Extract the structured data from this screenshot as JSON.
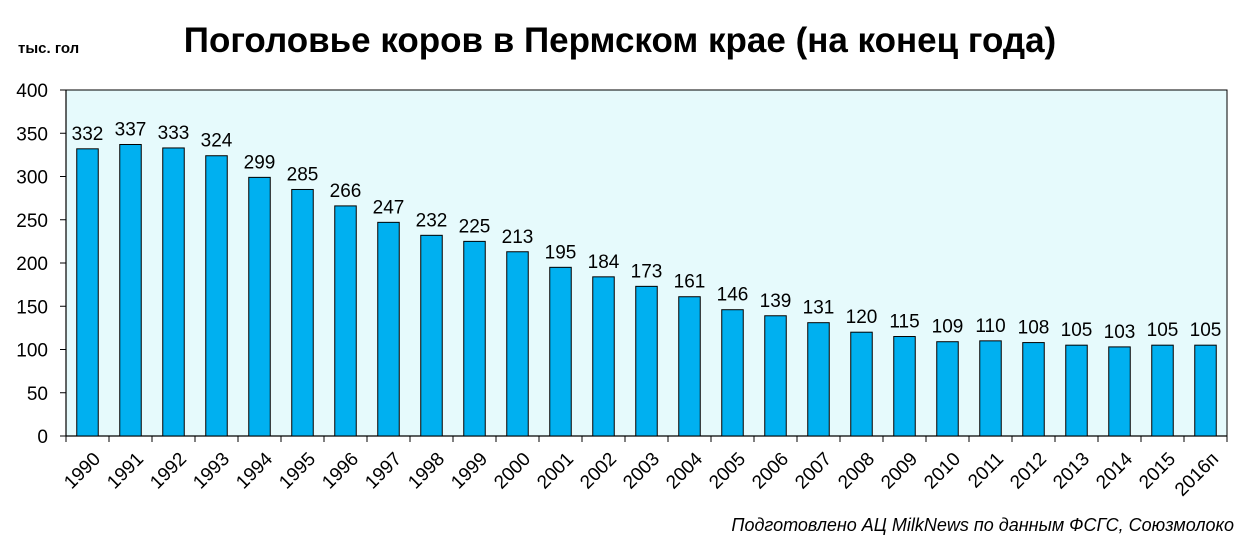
{
  "chart_data": {
    "type": "bar",
    "title": "Поголовье коров в Пермском крае (на конец года)",
    "ylabel": "тыс. гол",
    "xlabel": "",
    "ylim": [
      0,
      400
    ],
    "yticks": [
      0,
      50,
      100,
      150,
      200,
      250,
      300,
      350,
      400
    ],
    "grid": false,
    "categories": [
      "1990",
      "1991",
      "1992",
      "1993",
      "1994",
      "1995",
      "1996",
      "1997",
      "1998",
      "1999",
      "2000",
      "2001",
      "2002",
      "2003",
      "2004",
      "2005",
      "2006",
      "2007",
      "2008",
      "2009",
      "2010",
      "2011",
      "2012",
      "2013",
      "2014",
      "2015",
      "2016п"
    ],
    "values": [
      332,
      337,
      333,
      324,
      299,
      285,
      266,
      247,
      232,
      225,
      213,
      195,
      184,
      173,
      161,
      146,
      139,
      131,
      120,
      115,
      109,
      110,
      108,
      105,
      103,
      105,
      105
    ],
    "source": "Подготовлено АЦ MilkNews по данным ФСГС, Союзмолоко",
    "colors": {
      "bar_fill": "#00B0F0",
      "bar_stroke": "#000000",
      "plot_background": "#E6FAFC",
      "axis": "#000000",
      "text": "#000000"
    }
  }
}
